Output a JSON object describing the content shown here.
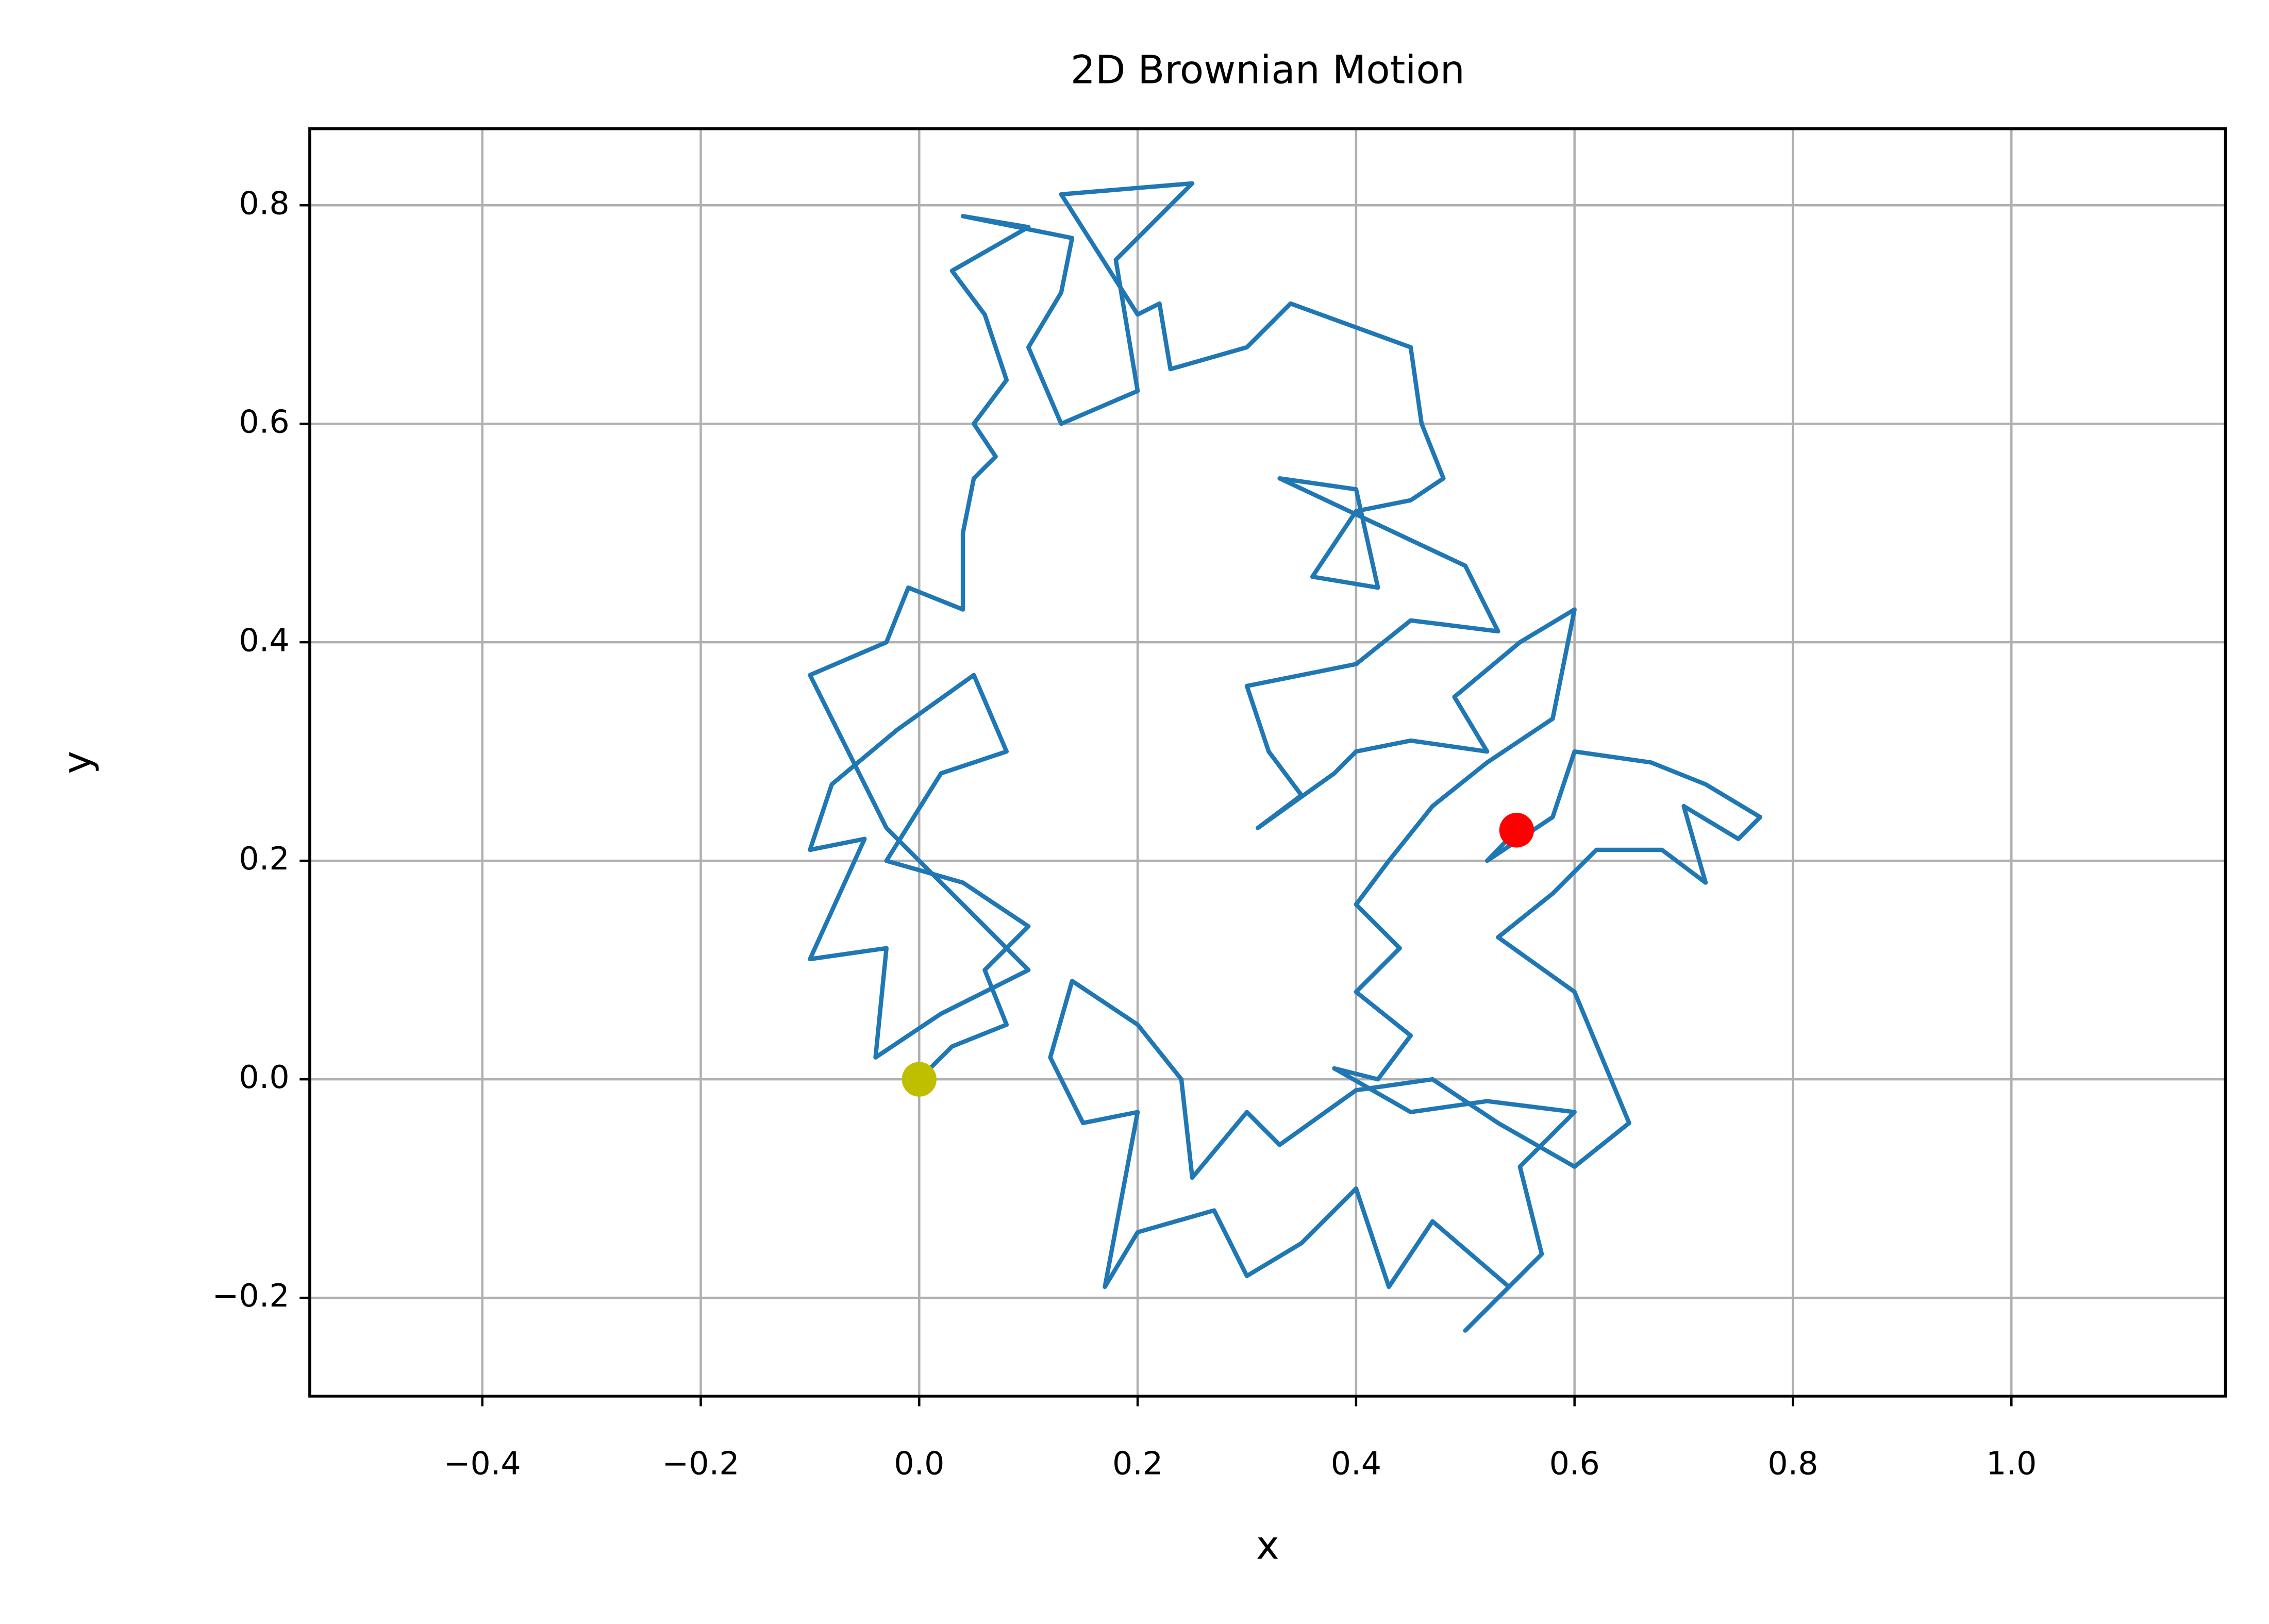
{
  "chart_data": {
    "type": "line",
    "title": "2D Brownian Motion",
    "x_label": "x",
    "y_label": "y",
    "xlim": [
      -0.558,
      1.196
    ],
    "ylim": [
      -0.29,
      0.87
    ],
    "grid": true,
    "xticks": [
      {
        "value": -0.4,
        "label": "−0.4"
      },
      {
        "value": -0.2,
        "label": "−0.2"
      },
      {
        "value": 0,
        "label": "0.0"
      },
      0.2,
      0.4,
      0.6,
      0.8,
      {
        "value": 1.0,
        "label": "1.0"
      }
    ],
    "yticks": [
      {
        "value": -0.2,
        "label": "−0.2"
      },
      {
        "value": 0,
        "label": "0.0"
      },
      0.2,
      0.4,
      0.6,
      0.8
    ],
    "series": [
      {
        "color": "#1f77b4",
        "x": [
          0,
          0.03,
          0.08,
          0.06,
          0.1,
          0.04,
          -0.03,
          0.02,
          0.08,
          0.05,
          -0.02,
          -0.08,
          -0.1,
          -0.05,
          -0.1,
          -0.03,
          -0.04,
          0.02,
          0.1,
          0.05,
          -0.03,
          -0.1,
          -0.03,
          -0.01,
          0.04,
          0.04,
          0.05,
          0.07,
          0.05,
          0.08,
          0.06,
          0.03,
          0.1,
          0.04,
          0.14,
          0.13,
          0.1,
          0.13,
          0.2,
          0.18,
          0.25,
          0.13,
          0.2,
          0.22,
          0.23,
          0.3,
          0.34,
          0.45,
          0.46,
          0.48,
          0.45,
          0.4,
          0.36,
          0.42,
          0.4,
          0.33,
          0.5,
          0.53,
          0.45,
          0.4,
          0.3,
          0.32,
          0.35,
          0.31,
          0.38,
          0.4,
          0.45,
          0.52,
          0.49,
          0.55,
          0.6,
          0.58,
          0.52,
          0.47,
          0.43,
          0.4,
          0.44,
          0.4,
          0.45,
          0.42,
          0.38,
          0.45,
          0.52,
          0.6,
          0.55,
          0.57,
          0.5,
          0.54,
          0.47,
          0.43,
          0.4,
          0.35,
          0.3,
          0.27,
          0.2,
          0.17,
          0.2,
          0.15,
          0.12,
          0.14,
          0.2,
          0.24,
          0.25,
          0.3,
          0.33,
          0.4,
          0.47,
          0.53,
          0.6,
          0.65,
          0.6,
          0.53,
          0.58,
          0.62,
          0.68,
          0.72,
          0.7,
          0.75,
          0.77,
          0.72,
          0.67,
          0.6,
          0.58,
          0.52,
          0.547
        ],
        "y": [
          0,
          0.03,
          0.05,
          0.1,
          0.14,
          0.18,
          0.2,
          0.28,
          0.3,
          0.37,
          0.32,
          0.27,
          0.21,
          0.22,
          0.11,
          0.12,
          0.02,
          0.06,
          0.1,
          0.15,
          0.23,
          0.37,
          0.4,
          0.45,
          0.43,
          0.5,
          0.55,
          0.57,
          0.6,
          0.64,
          0.7,
          0.74,
          0.78,
          0.79,
          0.77,
          0.72,
          0.67,
          0.6,
          0.63,
          0.75,
          0.82,
          0.81,
          0.7,
          0.71,
          0.65,
          0.67,
          0.71,
          0.67,
          0.6,
          0.55,
          0.53,
          0.52,
          0.46,
          0.45,
          0.54,
          0.55,
          0.47,
          0.41,
          0.42,
          0.38,
          0.36,
          0.3,
          0.26,
          0.23,
          0.28,
          0.3,
          0.31,
          0.3,
          0.35,
          0.4,
          0.43,
          0.33,
          0.29,
          0.25,
          0.2,
          0.16,
          0.12,
          0.08,
          0.04,
          0,
          0.01,
          -0.03,
          -0.02,
          -0.03,
          -0.08,
          -0.16,
          -0.23,
          -0.19,
          -0.13,
          -0.19,
          -0.1,
          -0.15,
          -0.18,
          -0.12,
          -0.14,
          -0.19,
          -0.03,
          -0.04,
          0.02,
          0.09,
          0.05,
          0,
          -0.09,
          -0.03,
          -0.06,
          -0.01,
          0,
          -0.04,
          -0.08,
          -0.04,
          0.08,
          0.13,
          0.17,
          0.21,
          0.21,
          0.18,
          0.25,
          0.22,
          0.24,
          0.27,
          0.29,
          0.3,
          0.24,
          0.2,
          0.228
        ]
      }
    ],
    "markers": [
      {
        "x": 0,
        "y": 0,
        "color": "#bfbf00"
      },
      {
        "x": 0.547,
        "y": 0.228,
        "color": "#ff0000"
      }
    ]
  }
}
